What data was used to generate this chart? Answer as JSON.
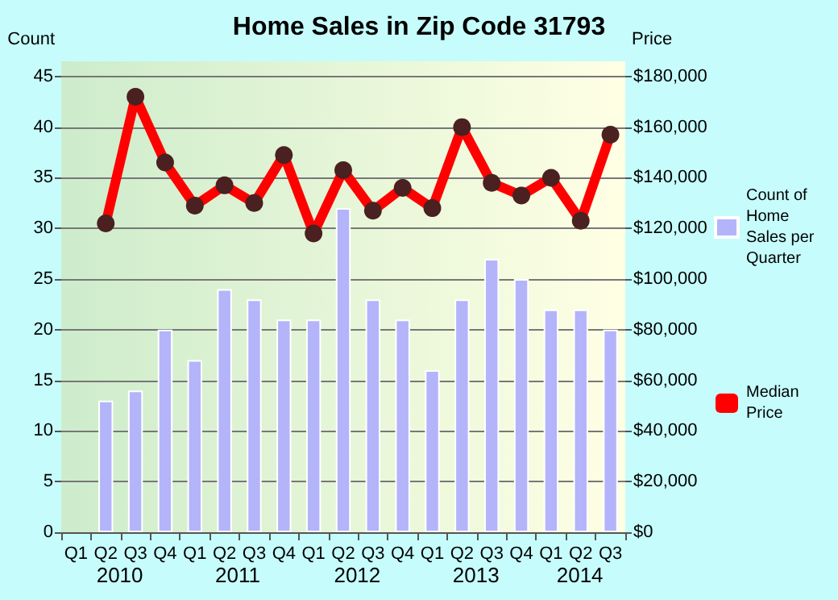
{
  "chart_data": {
    "type": "bar",
    "title": "Home Sales in Zip Code 31793",
    "categories": [
      "Q1",
      "Q2",
      "Q3",
      "Q4",
      "Q1",
      "Q2",
      "Q3",
      "Q4",
      "Q1",
      "Q2",
      "Q3",
      "Q4",
      "Q1",
      "Q2",
      "Q3",
      "Q4",
      "Q1",
      "Q2",
      "Q3"
    ],
    "annotations": [
      "2010",
      "2011",
      "2012",
      "2013",
      "2014"
    ],
    "ylabel": "Count",
    "y2label": "Price",
    "series": [
      {
        "name": "Count of Home Sales per Quarter",
        "color": "#b4b4fa",
        "values": [
          null,
          13,
          14,
          20,
          17,
          24,
          23,
          21,
          21,
          32,
          23,
          21,
          16,
          23,
          27,
          25,
          22,
          22,
          20
        ]
      },
      {
        "name": "Median Price",
        "type": "line",
        "axis": "y2",
        "color": "#ff0000",
        "marker": "circle",
        "values": [
          null,
          122000,
          172000,
          146000,
          129000,
          137000,
          130000,
          149000,
          118000,
          143000,
          127000,
          136000,
          128000,
          160000,
          138000,
          133000,
          140000,
          123000,
          157000
        ]
      }
    ],
    "ylim": [
      0,
      46.5
    ],
    "yticks": [
      0,
      5,
      10,
      15,
      20,
      25,
      30,
      35,
      40,
      45
    ],
    "y2lim": [
      0,
      186000
    ],
    "y2ticks": [
      {
        "value": 0,
        "label": "$0"
      },
      {
        "value": 20000,
        "label": "$20,000"
      },
      {
        "value": 40000,
        "label": "$40,000"
      },
      {
        "value": 60000,
        "label": "$60,000"
      },
      {
        "value": 80000,
        "label": "$80,000"
      },
      {
        "value": 100000,
        "label": "$100,000"
      },
      {
        "value": 120000,
        "label": "$120,000"
      },
      {
        "value": 140000,
        "label": "$140,000"
      },
      {
        "value": 160000,
        "label": "$160,000"
      },
      {
        "value": 180000,
        "label": "$180,000"
      }
    ],
    "grid": "y",
    "legend": "right"
  }
}
